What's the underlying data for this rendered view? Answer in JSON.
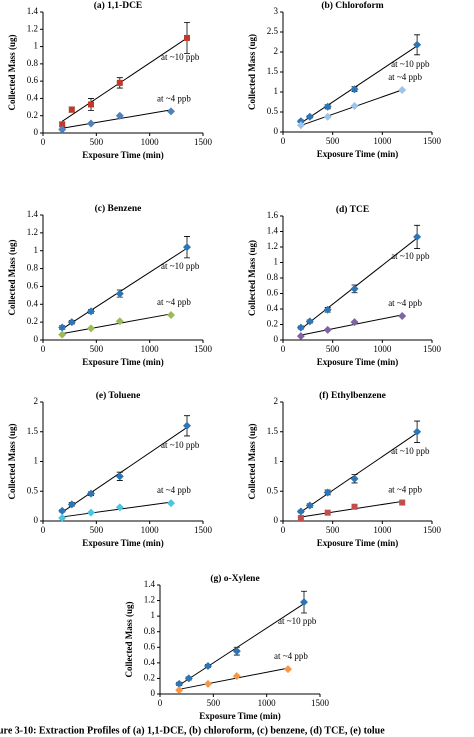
{
  "chart_data": [
    {
      "type": "scatter",
      "title": "(a) 1,1-DCE",
      "x_label": "Exposure Time (min)",
      "y_label": "Collected Mass (ug)",
      "xlim": [
        0,
        1500
      ],
      "xticks": [
        0,
        500,
        1000,
        1500
      ],
      "ylim": [
        0,
        1.4
      ],
      "yticks": [
        0,
        0.2,
        0.4,
        0.6,
        0.8,
        1,
        1.2,
        1.4
      ],
      "series": [
        {
          "name": "at ~10 ppb",
          "color": "#c0392b",
          "marker": "square",
          "x": [
            180,
            270,
            450,
            720,
            1350
          ],
          "values": [
            0.1,
            0.27,
            0.33,
            0.58,
            1.1
          ],
          "errors": [
            0.02,
            0.03,
            0.07,
            0.06,
            0.18
          ]
        },
        {
          "name": "at ~4 ppb",
          "color": "#4f81bd",
          "marker": "diamond",
          "x": [
            180,
            450,
            720,
            1200
          ],
          "values": [
            0.04,
            0.11,
            0.2,
            0.25
          ]
        }
      ]
    },
    {
      "type": "scatter",
      "title": "(b) Chloroform",
      "x_label": "Exposure Time (min)",
      "y_label": "Collected Mass (ug)",
      "xlim": [
        0,
        1500
      ],
      "xticks": [
        0,
        500,
        1000,
        1500
      ],
      "ylim": [
        0,
        3
      ],
      "yticks": [
        0,
        0.5,
        1,
        1.5,
        2,
        2.5,
        3
      ],
      "series": [
        {
          "name": "at ~10 ppb",
          "color": "#2e75b6",
          "marker": "diamond",
          "x": [
            180,
            270,
            450,
            720,
            1350
          ],
          "values": [
            0.27,
            0.38,
            0.63,
            1.07,
            2.18
          ],
          "errors": [
            0.03,
            0.03,
            0.05,
            0.06,
            0.25
          ]
        },
        {
          "name": "at ~4 ppb",
          "color": "#9dc3e6",
          "marker": "diamond",
          "x": [
            180,
            450,
            720,
            1200
          ],
          "values": [
            0.17,
            0.38,
            0.65,
            1.05
          ]
        }
      ]
    },
    {
      "type": "scatter",
      "title": "(c) Benzene",
      "x_label": "Exposure Time (min)",
      "y_label": "Collected Mass (ug)",
      "xlim": [
        0,
        1500
      ],
      "xticks": [
        0,
        500,
        1000,
        1500
      ],
      "ylim": [
        0,
        1.4
      ],
      "yticks": [
        0,
        0.2,
        0.4,
        0.6,
        0.8,
        1,
        1.2,
        1.4
      ],
      "series": [
        {
          "name": "at ~10 ppb",
          "color": "#2e75b6",
          "marker": "diamond",
          "x": [
            180,
            270,
            450,
            720,
            1350
          ],
          "values": [
            0.14,
            0.2,
            0.32,
            0.52,
            1.04
          ],
          "errors": [
            0.02,
            0.02,
            0.02,
            0.04,
            0.12
          ]
        },
        {
          "name": "at ~4 ppb",
          "color": "#9bbb59",
          "marker": "diamond",
          "x": [
            180,
            450,
            720,
            1200
          ],
          "values": [
            0.06,
            0.13,
            0.21,
            0.28
          ]
        }
      ]
    },
    {
      "type": "scatter",
      "title": "(d) TCE",
      "x_label": "Exposure Time (min)",
      "y_label": "Collected Mass (ug)",
      "xlim": [
        0,
        1500
      ],
      "xticks": [
        0,
        500,
        1000,
        1500
      ],
      "ylim": [
        0,
        1.6
      ],
      "yticks": [
        0,
        0.2,
        0.4,
        0.6,
        0.8,
        1,
        1.2,
        1.4,
        1.6
      ],
      "series": [
        {
          "name": "at ~10 ppb",
          "color": "#2e75b6",
          "marker": "diamond",
          "x": [
            180,
            270,
            450,
            720,
            1350
          ],
          "values": [
            0.16,
            0.24,
            0.39,
            0.66,
            1.33
          ],
          "errors": [
            0.02,
            0.02,
            0.03,
            0.05,
            0.15
          ]
        },
        {
          "name": "at ~4 ppb",
          "color": "#8064a2",
          "marker": "diamond",
          "x": [
            180,
            450,
            720,
            1200
          ],
          "values": [
            0.05,
            0.13,
            0.23,
            0.31
          ]
        }
      ]
    },
    {
      "type": "scatter",
      "title": "(e) Toluene",
      "x_label": "Exposure Time (min)",
      "y_label": "Collected Mass (ug)",
      "xlim": [
        0,
        1500
      ],
      "xticks": [
        0,
        500,
        1000,
        1500
      ],
      "ylim": [
        0,
        2
      ],
      "yticks": [
        0,
        0.5,
        1,
        1.5,
        2
      ],
      "series": [
        {
          "name": "at ~10 ppb",
          "color": "#2e75b6",
          "marker": "diamond",
          "x": [
            180,
            270,
            450,
            720,
            1350
          ],
          "values": [
            0.17,
            0.28,
            0.46,
            0.75,
            1.6
          ],
          "errors": [
            0.02,
            0.03,
            0.03,
            0.07,
            0.17
          ]
        },
        {
          "name": "at ~4 ppb",
          "color": "#4bc6e0",
          "marker": "diamond",
          "x": [
            180,
            450,
            720,
            1200
          ],
          "values": [
            0.05,
            0.14,
            0.23,
            0.3
          ]
        }
      ]
    },
    {
      "type": "scatter",
      "title": "(f) Ethylbenzene",
      "x_label": "Exposure Time (min)",
      "y_label": "Collected Mass (ug)",
      "xlim": [
        0,
        1500
      ],
      "xticks": [
        0,
        500,
        1000,
        1500
      ],
      "ylim": [
        0,
        2
      ],
      "yticks": [
        0,
        0.5,
        1,
        1.5,
        2
      ],
      "series": [
        {
          "name": "at ~10 ppb",
          "color": "#2e75b6",
          "marker": "diamond",
          "x": [
            180,
            270,
            450,
            720,
            1350
          ],
          "values": [
            0.16,
            0.26,
            0.48,
            0.71,
            1.5
          ],
          "errors": [
            0.02,
            0.03,
            0.04,
            0.07,
            0.18
          ]
        },
        {
          "name": "at ~4 ppb",
          "color": "#c0504d",
          "marker": "square",
          "x": [
            180,
            450,
            720,
            1200
          ],
          "values": [
            0.05,
            0.14,
            0.24,
            0.31
          ]
        }
      ]
    },
    {
      "type": "scatter",
      "title": "(g) o-Xylene",
      "x_label": "Exposure Time (min)",
      "y_label": "Collected Mass (ug)",
      "xlim": [
        0,
        1500
      ],
      "xticks": [
        0,
        500,
        1000,
        1500
      ],
      "ylim": [
        0,
        1.4
      ],
      "yticks": [
        0,
        0.2,
        0.4,
        0.6,
        0.8,
        1,
        1.2,
        1.4
      ],
      "series": [
        {
          "name": "at ~10 ppb",
          "color": "#2e75b6",
          "marker": "diamond",
          "x": [
            180,
            270,
            450,
            720,
            1350
          ],
          "values": [
            0.13,
            0.2,
            0.36,
            0.55,
            1.18
          ],
          "errors": [
            0.02,
            0.02,
            0.02,
            0.05,
            0.14
          ]
        },
        {
          "name": "at ~4 ppb",
          "color": "#f79646",
          "marker": "diamond",
          "x": [
            180,
            450,
            720,
            1200
          ],
          "values": [
            0.05,
            0.13,
            0.23,
            0.32
          ]
        }
      ]
    }
  ],
  "caption": "ure 3-10: Extraction Profiles of (a) 1,1-DCE, (b) chloroform, (c) benzene, (d) TCE, (e) tolue"
}
